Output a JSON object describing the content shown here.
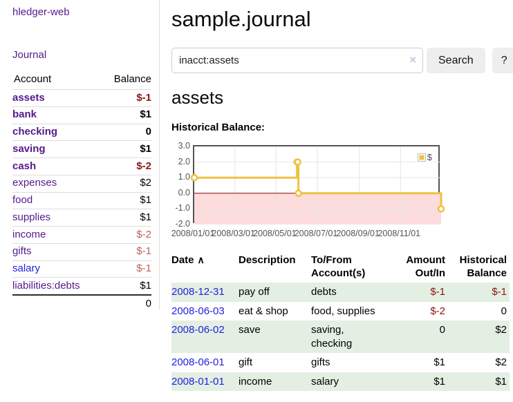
{
  "colors": {
    "link_purple": "#551a8b",
    "link_blue": "#2222dd",
    "negative_strong": "#8b1414",
    "negative_soft": "#c05f5f",
    "row_stripe_green": "#e2efe2",
    "chart_series_gold": "#edc240",
    "chart_negative_fill": "#fcdcdc",
    "chart_zero_line": "#8b0000",
    "button_bg": "#eeeeee"
  },
  "app": {
    "title": "hledger-web",
    "nav_journal": "Journal"
  },
  "sidebar": {
    "header": {
      "account": "Account",
      "balance": "Balance"
    },
    "accounts": [
      {
        "name": "assets",
        "depth": 1,
        "balance": "$-1",
        "bold": true,
        "unvisited": false
      },
      {
        "name": "bank",
        "depth": 2,
        "balance": "$1",
        "bold": true,
        "unvisited": false
      },
      {
        "name": "checking",
        "depth": 3,
        "balance": "0",
        "bold": true,
        "unvisited": false
      },
      {
        "name": "saving",
        "depth": 3,
        "balance": "$1",
        "bold": true,
        "unvisited": false
      },
      {
        "name": "cash",
        "depth": 2,
        "balance": "$-2",
        "bold": true,
        "unvisited": false
      },
      {
        "name": "expenses",
        "depth": 1,
        "balance": "$2",
        "bold": false,
        "unvisited": false
      },
      {
        "name": "food",
        "depth": 2,
        "balance": "$1",
        "bold": false,
        "unvisited": false
      },
      {
        "name": "supplies",
        "depth": 2,
        "balance": "$1",
        "bold": false,
        "unvisited": false
      },
      {
        "name": "income",
        "depth": 1,
        "balance": "$-2",
        "bold": false,
        "unvisited": false
      },
      {
        "name": "gifts",
        "depth": 2,
        "balance": "$-1",
        "bold": false,
        "unvisited": false
      },
      {
        "name": "salary",
        "depth": 2,
        "balance": "$-1",
        "bold": false,
        "unvisited": true
      },
      {
        "name": "liabilities:debts",
        "depth": 1,
        "balance": "$1",
        "bold": false,
        "unvisited": false
      }
    ],
    "total": "0"
  },
  "main": {
    "title": "sample.journal",
    "search": {
      "value": "inacct:assets",
      "clear_icon": "×",
      "button_label": "Search",
      "help_label": "?"
    },
    "account_heading": "assets",
    "chart_label": "Historical Balance:"
  },
  "chart_data": {
    "type": "line",
    "style": "steps",
    "title": "Historical Balance",
    "x_range": [
      "2008/01/01",
      "2008/12/31"
    ],
    "ylim": [
      -2,
      3
    ],
    "grid": true,
    "legend_position": "top-right",
    "yticks": [
      {
        "v": 3,
        "label": "3.0"
      },
      {
        "v": 2,
        "label": "2.0"
      },
      {
        "v": 1,
        "label": "1.0"
      },
      {
        "v": 0,
        "label": "0.0"
      },
      {
        "v": -1,
        "label": "-1.0"
      },
      {
        "v": -2,
        "label": "-2.0"
      }
    ],
    "xticks": [
      "2008/01/01",
      "2008/03/01",
      "2008/05/01",
      "2008/07/01",
      "2008/09/01",
      "2008/11/01"
    ],
    "series": [
      {
        "name": "$",
        "points": [
          [
            "2008-01-01",
            1
          ],
          [
            "2008-06-01",
            2
          ],
          [
            "2008-06-02",
            2
          ],
          [
            "2008-06-03",
            0
          ],
          [
            "2008-12-31",
            -1
          ]
        ]
      }
    ]
  },
  "register": {
    "headers": [
      {
        "label": "Date",
        "sort_icon": "∧"
      },
      {
        "label": "Description"
      },
      {
        "label": "To/From Account(s)"
      },
      {
        "label": "Amount Out/In"
      },
      {
        "label": "Historical Balance"
      }
    ],
    "rows": [
      {
        "date": "2008-12-31",
        "description": "pay off",
        "accounts": [
          "debts"
        ],
        "amount": "$-1",
        "balance": "$-1"
      },
      {
        "date": "2008-06-03",
        "description": "eat & shop",
        "accounts": [
          "food, supplies"
        ],
        "amount": "$-2",
        "balance": "0"
      },
      {
        "date": "2008-06-02",
        "description": "save",
        "accounts": [
          "saving,",
          "checking"
        ],
        "amount": "0",
        "balance": "$2"
      },
      {
        "date": "2008-06-01",
        "description": "gift",
        "accounts": [
          "gifts"
        ],
        "amount": "$1",
        "balance": "$2"
      },
      {
        "date": "2008-01-01",
        "description": "income",
        "accounts": [
          "salary"
        ],
        "amount": "$1",
        "balance": "$1"
      }
    ]
  }
}
